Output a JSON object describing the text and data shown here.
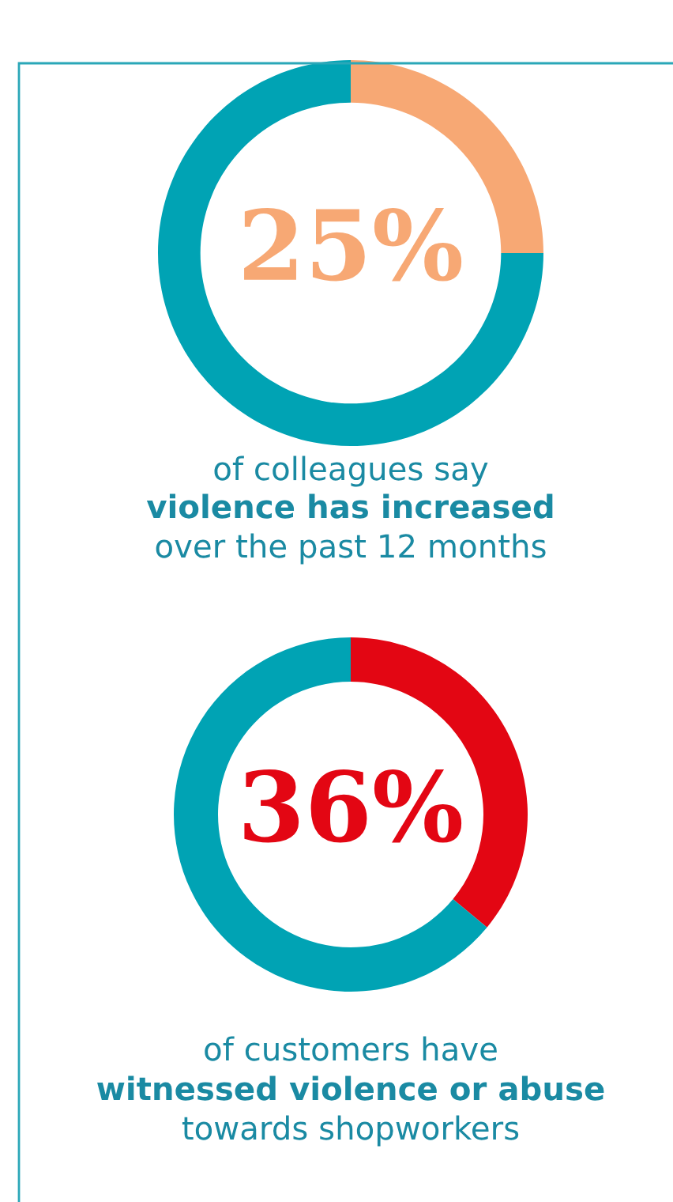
{
  "chart_data": [
    {
      "type": "donut",
      "categories": [
        null,
        null
      ],
      "values": [
        25,
        75
      ],
      "colors": [
        "#f7a874",
        "#00a3b4"
      ],
      "value_labels": [
        "25%",
        null
      ],
      "annotations": [
        "of colleagues say",
        "violence has increased",
        "over the past 12 months"
      ]
    },
    {
      "type": "donut",
      "categories": [
        null,
        null
      ],
      "values": [
        36,
        64
      ],
      "colors": [
        "#e30613",
        "#00a3b4"
      ],
      "value_labels": [
        "36%",
        null
      ],
      "annotations": [
        "of customers have",
        "witnessed violence or abuse",
        "towards shopworkers"
      ]
    }
  ]
}
